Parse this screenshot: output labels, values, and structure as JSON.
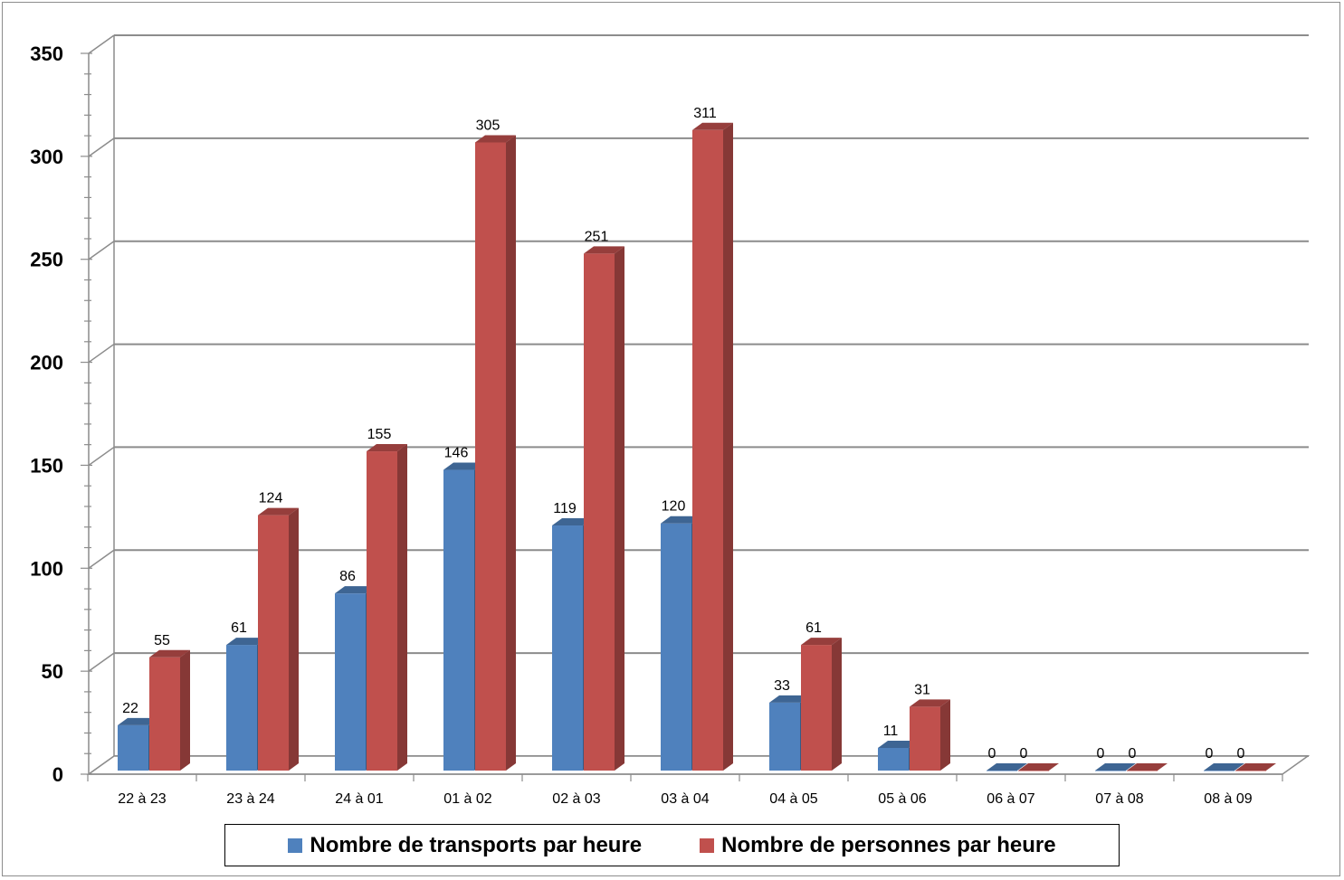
{
  "chart_data": {
    "type": "bar",
    "title": "",
    "xlabel": "",
    "ylabel": "",
    "ylim": [
      0,
      350
    ],
    "yticks": [
      0,
      50,
      100,
      150,
      200,
      250,
      300,
      350
    ],
    "grid": true,
    "legend_position": "bottom",
    "categories": [
      "22 à 23",
      "23 à 24",
      "24 à 01",
      "01 à 02",
      "02 à 03",
      "03 à 04",
      "04 à 05",
      "05 à 06",
      "06 à 07",
      "07 à 08",
      "08 à 09"
    ],
    "series": [
      {
        "name": "Nombre de transports par heure",
        "color": "#4f81bd",
        "values": [
          22,
          61,
          86,
          146,
          119,
          120,
          33,
          11,
          0,
          0,
          0
        ]
      },
      {
        "name": "Nombre de personnes par heure",
        "color": "#c0504d",
        "values": [
          55,
          124,
          155,
          305,
          251,
          311,
          61,
          31,
          0,
          0,
          0
        ]
      }
    ]
  }
}
